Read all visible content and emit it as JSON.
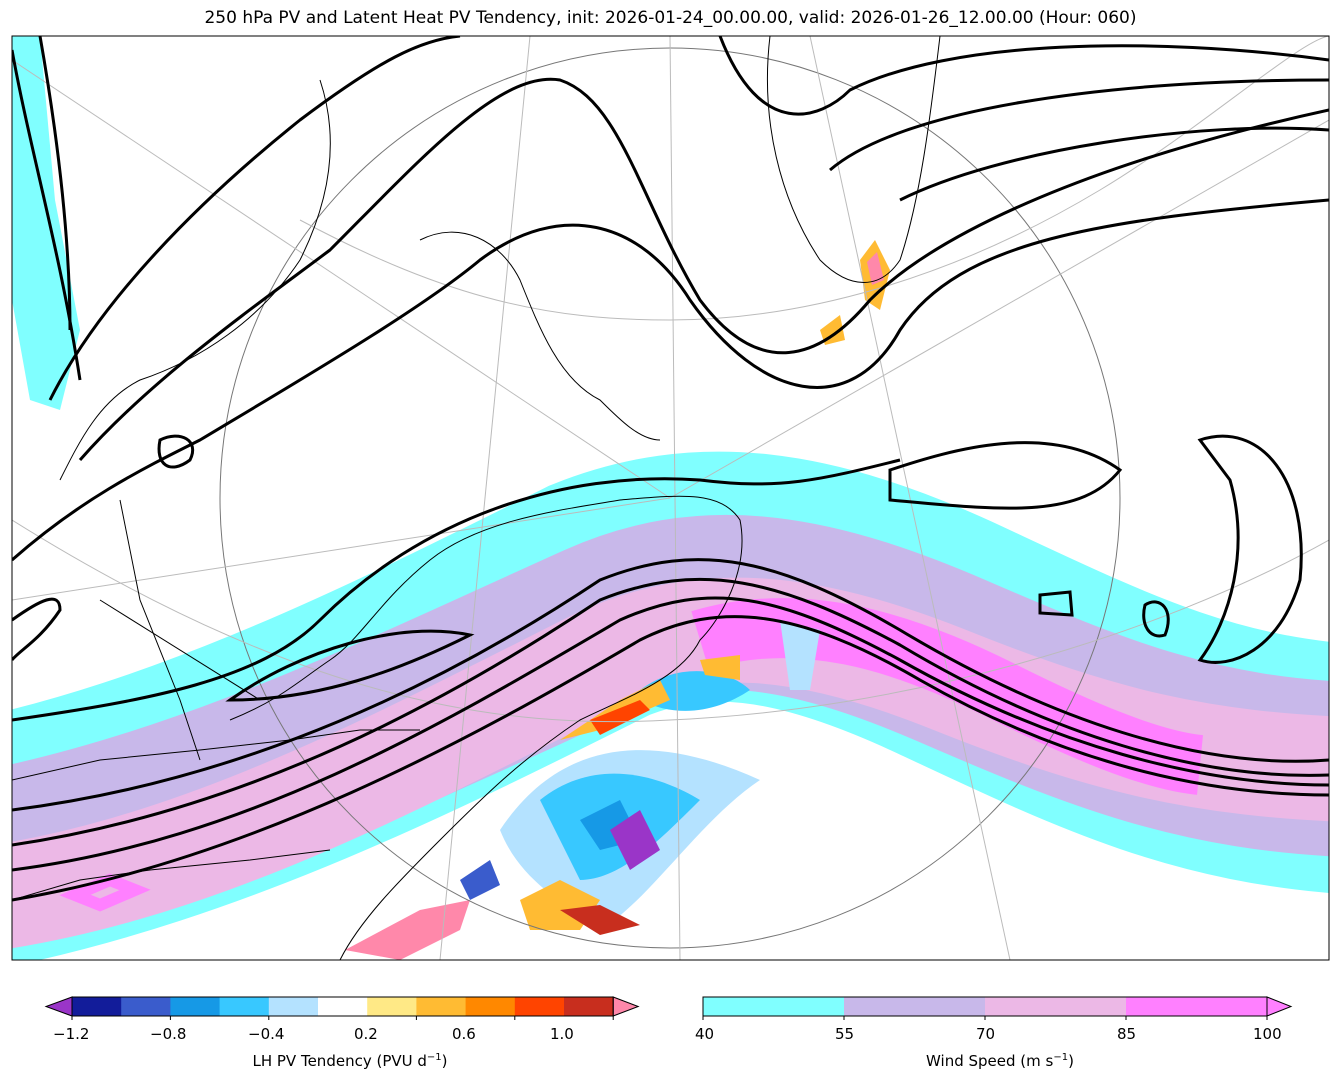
{
  "title": "250 hPa PV and Latent Heat PV Tendency, init: 2026-01-24_00.00.00, valid: 2026-01-26_12.00.00 (Hour: 060)",
  "colorbar_pv": {
    "label": "LH PV Tendency (PVU d",
    "label_sup": "−1",
    "label_end": ")",
    "ticks": [
      "−1.2",
      "−0.8",
      "−0.4",
      "0.2",
      "0.6",
      "1.0"
    ],
    "colors": [
      "#9a35c8",
      "#121c9a",
      "#3a5ccc",
      "#1699e6",
      "#38c8ff",
      "#b4e2ff",
      "#ffffff",
      "#ffe986",
      "#ffbb33",
      "#ff8800",
      "#ff4400",
      "#c82e1e",
      "#ff88aa"
    ]
  },
  "colorbar_wind": {
    "label": "Wind Speed (m s",
    "label_sup": "−1",
    "label_end": ")",
    "ticks": [
      "40",
      "55",
      "70",
      "85",
      "100"
    ],
    "colors": [
      "#80ffff",
      "#c8b8ea",
      "#ecb8e6",
      "#ff80ff"
    ]
  }
}
